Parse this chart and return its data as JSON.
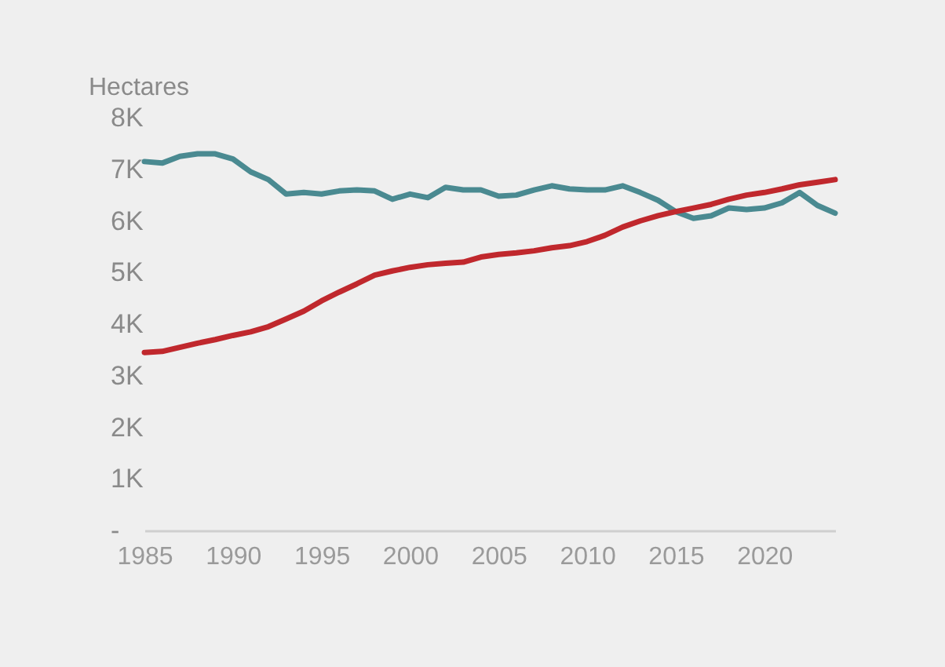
{
  "chart_data": {
    "type": "line",
    "ylabel": "Hectares",
    "x": [
      1985,
      1986,
      1987,
      1988,
      1989,
      1990,
      1991,
      1992,
      1993,
      1994,
      1995,
      1996,
      1997,
      1998,
      1999,
      2000,
      2001,
      2002,
      2003,
      2004,
      2005,
      2006,
      2007,
      2008,
      2009,
      2010,
      2011,
      2012,
      2013,
      2014,
      2015,
      2016,
      2017,
      2018,
      2019,
      2020,
      2021,
      2022,
      2023,
      2024
    ],
    "series": [
      {
        "color": "#4a8a91",
        "values": [
          7150,
          7120,
          7250,
          7300,
          7300,
          7200,
          6950,
          6800,
          6520,
          6550,
          6520,
          6580,
          6600,
          6580,
          6420,
          6520,
          6450,
          6650,
          6600,
          6600,
          6480,
          6500,
          6600,
          6680,
          6620,
          6600,
          6600,
          6680,
          6550,
          6400,
          6180,
          6050,
          6100,
          6250,
          6220,
          6250,
          6350,
          6550,
          6300,
          6150
        ]
      },
      {
        "color": "#c0282d",
        "values": [
          3450,
          3470,
          3550,
          3630,
          3700,
          3780,
          3850,
          3950,
          4100,
          4250,
          4450,
          4620,
          4780,
          4950,
          5030,
          5100,
          5150,
          5180,
          5200,
          5300,
          5350,
          5380,
          5420,
          5480,
          5520,
          5600,
          5720,
          5880,
          6000,
          6100,
          6180,
          6250,
          6320,
          6420,
          6500,
          6550,
          6620,
          6700,
          6750,
          6800
        ]
      }
    ],
    "xlim": [
      1985,
      2024
    ],
    "xticks": [
      1985,
      1990,
      1995,
      2000,
      2005,
      2010,
      2015,
      2020
    ],
    "ylim": [
      0,
      8000
    ],
    "yticks": [
      {
        "value": 0,
        "label": "-"
      },
      {
        "value": 1000,
        "label": "1K"
      },
      {
        "value": 2000,
        "label": "2K"
      },
      {
        "value": 3000,
        "label": "3K"
      },
      {
        "value": 4000,
        "label": "4K"
      },
      {
        "value": 5000,
        "label": "5K"
      },
      {
        "value": 6000,
        "label": "6K"
      },
      {
        "value": 7000,
        "label": "7K"
      },
      {
        "value": 8000,
        "label": "8K"
      }
    ],
    "grid": false,
    "legend": false,
    "line_style": "solid",
    "marker": "none"
  }
}
